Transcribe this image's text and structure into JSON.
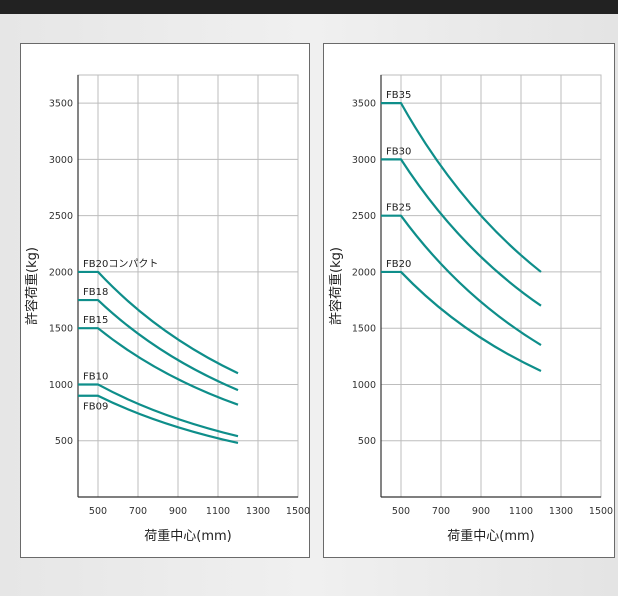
{
  "chart_data": [
    {
      "type": "line",
      "xlabel": "荷重中心(mm)",
      "ylabel": "許容荷重(kg)",
      "xlim": [
        400,
        1500
      ],
      "ylim": [
        0,
        3750
      ],
      "x_ticks": [
        "500",
        "700",
        "900",
        "1100",
        "1300",
        "1500"
      ],
      "x_tick_values": [
        500,
        700,
        900,
        1100,
        1300,
        1500
      ],
      "y_ticks": [
        "500",
        "1000",
        "1500",
        "2000",
        "2500",
        "3000",
        "3500"
      ],
      "y_tick_values": [
        500,
        1000,
        1500,
        2000,
        2500,
        3000,
        3500
      ],
      "grid": true,
      "series": [
        {
          "name": "FB20コンパクト",
          "x": [
            400,
            500,
            1200
          ],
          "y": [
            2000,
            2000,
            1100
          ]
        },
        {
          "name": "FB18",
          "x": [
            400,
            500,
            1200
          ],
          "y": [
            1750,
            1750,
            950
          ]
        },
        {
          "name": "FB15",
          "x": [
            400,
            500,
            1200
          ],
          "y": [
            1500,
            1500,
            820
          ]
        },
        {
          "name": "FB10",
          "x": [
            400,
            500,
            1200
          ],
          "y": [
            1000,
            1000,
            540
          ]
        },
        {
          "name": "FB09",
          "x": [
            400,
            500,
            1200
          ],
          "y": [
            900,
            900,
            480
          ]
        }
      ]
    },
    {
      "type": "line",
      "xlabel": "荷重中心(mm)",
      "ylabel": "許容荷重(kg)",
      "xlim": [
        400,
        1500
      ],
      "ylim": [
        0,
        3750
      ],
      "x_ticks": [
        "500",
        "700",
        "900",
        "1100",
        "1300",
        "1500"
      ],
      "x_tick_values": [
        500,
        700,
        900,
        1100,
        1300,
        1500
      ],
      "y_ticks": [
        "500",
        "1000",
        "1500",
        "2000",
        "2500",
        "3000",
        "3500"
      ],
      "y_tick_values": [
        500,
        1000,
        1500,
        2000,
        2500,
        3000,
        3500
      ],
      "grid": true,
      "series": [
        {
          "name": "FB35",
          "x": [
            400,
            500,
            1200
          ],
          "y": [
            3500,
            3500,
            2000
          ]
        },
        {
          "name": "FB30",
          "x": [
            400,
            500,
            1200
          ],
          "y": [
            3000,
            3000,
            1700
          ]
        },
        {
          "name": "FB25",
          "x": [
            400,
            500,
            1200
          ],
          "y": [
            2500,
            2500,
            1350
          ]
        },
        {
          "name": "FB20",
          "x": [
            400,
            500,
            1200
          ],
          "y": [
            2000,
            2000,
            1120
          ]
        }
      ]
    }
  ],
  "colors": {
    "line": "#0e8e8a",
    "grid": "#bdbdbd",
    "axis": "#333333"
  }
}
